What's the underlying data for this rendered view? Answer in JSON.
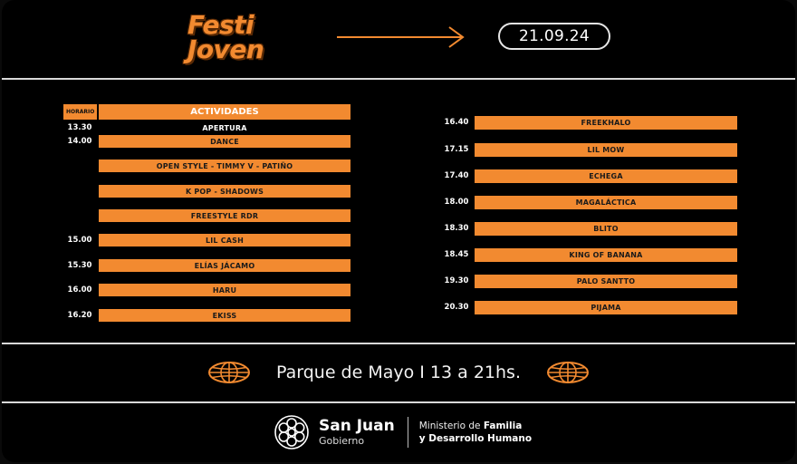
{
  "header": {
    "logo_line1": "Festi",
    "logo_line2": "Joven",
    "date": "21.09.24"
  },
  "schedule": {
    "col_time_header": "HORARIO",
    "col_activity_header": "ACTIVIDADES",
    "left": [
      {
        "time": "13.30",
        "activity": "APERTURA",
        "highlight": false
      },
      {
        "time": "14.00",
        "activity": "DANCE",
        "highlight": true
      },
      {
        "time": "",
        "activity": "OPEN STYLE - TIMMY V - PATIÑO",
        "highlight": true
      },
      {
        "time": "",
        "activity": "K POP - SHADOWS",
        "highlight": true
      },
      {
        "time": "",
        "activity": "FREESTYLE RDR",
        "highlight": true
      },
      {
        "time": "15.00",
        "activity": "LIL CASH",
        "highlight": true
      },
      {
        "time": "15.30",
        "activity": "ELÍAS JÁCAMO",
        "highlight": true
      },
      {
        "time": "16.00",
        "activity": "HARU",
        "highlight": true
      },
      {
        "time": "16.20",
        "activity": "EKISS",
        "highlight": true
      }
    ],
    "right": [
      {
        "time": "16.40",
        "activity": "FREEKHALO"
      },
      {
        "time": "17.15",
        "activity": "LIL MOW"
      },
      {
        "time": "17.40",
        "activity": "ECHEGA"
      },
      {
        "time": "18.00",
        "activity": "MAGALÁCTICA"
      },
      {
        "time": "18.30",
        "activity": "BLITO"
      },
      {
        "time": "18.45",
        "activity": "KING OF BANANA"
      },
      {
        "time": "19.30",
        "activity": "PALO SANTTO"
      },
      {
        "time": "20.30",
        "activity": "PIJAMA"
      }
    ]
  },
  "venue": {
    "text": "Parque de Mayo I 13 a 21hs."
  },
  "footer": {
    "brand": "San Juan",
    "brand_sub": "Gobierno",
    "ministry_prefix": "Ministerio de ",
    "ministry_bold1": "Familia",
    "ministry_line2": "y Desarrollo Humano"
  },
  "colors": {
    "accent": "#f28a30",
    "background": "#000000",
    "divider": "#d9d9d9"
  },
  "icons": [
    "arrow-right-icon",
    "globe-icon",
    "san-juan-flower-logo"
  ]
}
